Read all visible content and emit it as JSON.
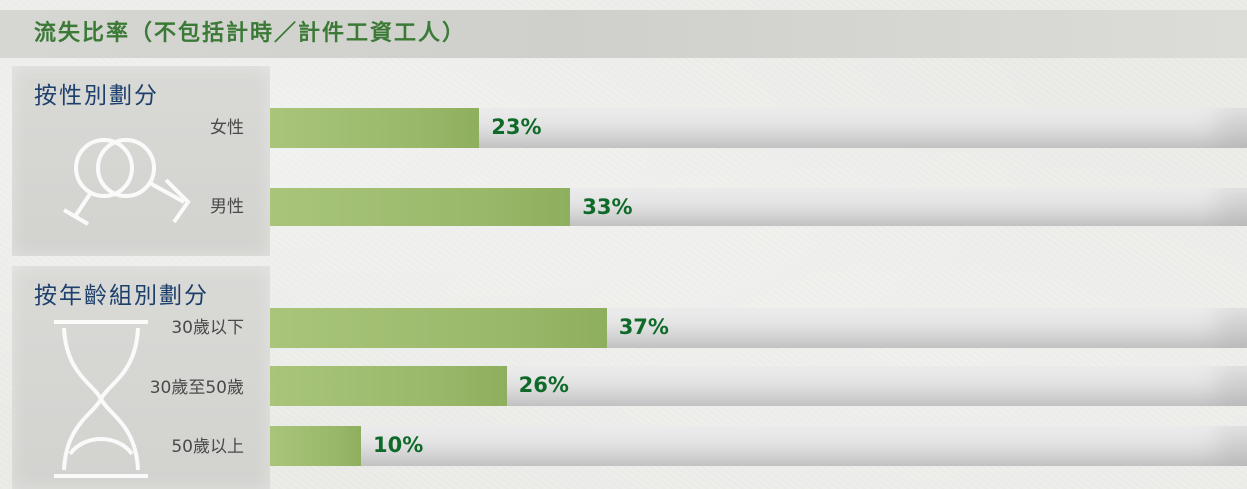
{
  "title": "流失比率（不包括計時／計件工資工人）",
  "colors": {
    "bar": "#9ab86a",
    "value_text": "#0f6a2a",
    "section_title": "#1d3f6b",
    "title_text": "#3a7a36"
  },
  "sections": [
    {
      "title": "按性別劃分",
      "icon": "gender-icon"
    },
    {
      "title": "按年齡組別劃分",
      "icon": "hourglass-icon"
    }
  ],
  "chart_data": {
    "type": "bar",
    "orientation": "horizontal",
    "title": "流失比率（不包括計時／計件工資工人）",
    "groups": [
      {
        "name": "按性別劃分",
        "categories": [
          "女性",
          "男性"
        ],
        "values": [
          23,
          33
        ],
        "labels": [
          "23%",
          "33%"
        ]
      },
      {
        "name": "按年齡組別劃分",
        "categories": [
          "30歲以下",
          "30歲至50歲",
          "50歲以上"
        ],
        "values": [
          37,
          26,
          10
        ],
        "labels": [
          "37%",
          "26%",
          "10%"
        ]
      }
    ],
    "unit": "%",
    "xlim": [
      0,
      100
    ],
    "grid": false,
    "legend": "none"
  }
}
